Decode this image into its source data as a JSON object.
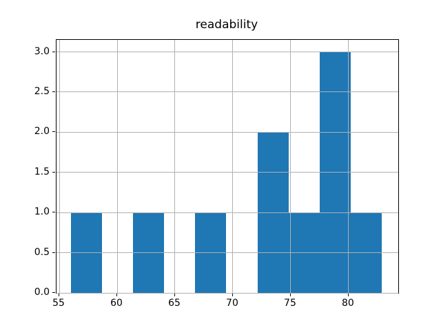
{
  "figure": {
    "background": "#ffffff"
  },
  "chart_data": {
    "type": "bar",
    "subtype": "histogram",
    "title": "readability",
    "xlabel": "",
    "ylabel": "",
    "bin_edges": [
      56.0,
      58.69,
      61.37,
      64.06,
      66.74,
      69.43,
      72.12,
      74.8,
      77.49,
      80.17,
      82.86
    ],
    "counts": [
      1,
      0,
      1,
      0,
      1,
      0,
      2,
      1,
      3,
      1
    ],
    "xlim": [
      54.76,
      84.29
    ],
    "ylim": [
      0,
      3.15
    ],
    "x_ticks": [
      55,
      60,
      65,
      70,
      75,
      80
    ],
    "x_tick_labels": [
      "55",
      "60",
      "65",
      "70",
      "75",
      "80"
    ],
    "y_ticks": [
      0,
      0.5,
      1,
      1.5,
      2,
      2.5,
      3
    ],
    "y_tick_labels": [
      "0.0",
      "0.5",
      "1.0",
      "1.5",
      "2.0",
      "2.5",
      "3.0"
    ],
    "grid": true,
    "legend_position": "none",
    "bar_color": "#1f77b4",
    "grid_color": "#b0b0b0",
    "spine_color": "#000000",
    "text_color": "#000000"
  }
}
